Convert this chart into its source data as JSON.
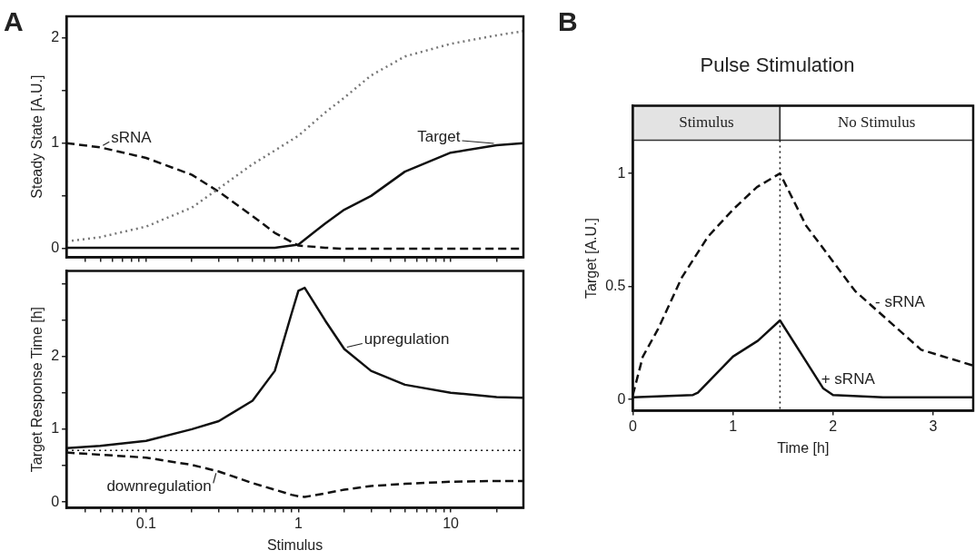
{
  "chart_data": [
    {
      "type": "line",
      "annotations": [
        "A",
        {
          "text": "sRNA",
          "x": 0.05,
          "y": 0.96
        },
        {
          "text": "Target",
          "x": 20,
          "y": 0.98
        }
      ],
      "ylabel": "Steady State [A.U.]",
      "log": "x",
      "xlim": [
        0.03,
        30
      ],
      "ylim": [
        -0.08,
        2.2
      ],
      "xticks": [
        {
          "value": 0.04,
          "label": null
        },
        {
          "value": 0.05,
          "label": null
        },
        {
          "value": 0.06,
          "label": null
        },
        {
          "value": 0.07,
          "label": null
        },
        {
          "value": 0.08,
          "label": null
        },
        {
          "value": 0.09,
          "label": null
        },
        {
          "value": 0.1,
          "label": null
        },
        {
          "value": 0.2,
          "label": null
        },
        {
          "value": 0.3,
          "label": null
        },
        {
          "value": 0.4,
          "label": null
        },
        {
          "value": 0.5,
          "label": null
        },
        {
          "value": 0.6,
          "label": null
        },
        {
          "value": 0.7,
          "label": null
        },
        {
          "value": 0.8,
          "label": null
        },
        {
          "value": 0.9,
          "label": null
        },
        {
          "value": 1,
          "label": null
        },
        {
          "value": 2,
          "label": null
        },
        {
          "value": 3,
          "label": null
        },
        {
          "value": 4,
          "label": null
        },
        {
          "value": 5,
          "label": null
        },
        {
          "value": 6,
          "label": null
        },
        {
          "value": 7,
          "label": null
        },
        {
          "value": 8,
          "label": null
        },
        {
          "value": 9,
          "label": null
        },
        {
          "value": 10,
          "label": null
        },
        {
          "value": 20,
          "label": null
        }
      ],
      "yticks": [
        0,
        {
          "value": 0.5,
          "label": null
        },
        1,
        {
          "value": 1.5,
          "label": null
        },
        2
      ],
      "tick_labels": "y",
      "grid": false,
      "legend": false,
      "x": [
        0.03,
        0.05,
        0.1,
        0.2,
        0.3,
        0.5,
        0.7,
        1,
        1.5,
        2,
        3,
        5,
        10,
        20,
        30
      ],
      "series": [
        {
          "color": "#777777",
          "line_style": "dotted",
          "values": [
            0.07,
            0.11,
            0.21,
            0.39,
            0.57,
            0.8,
            0.93,
            1.07,
            1.29,
            1.43,
            1.64,
            1.82,
            1.94,
            2.02,
            2.06
          ]
        },
        {
          "color": "#111111",
          "line_style": "dashed",
          "values": [
            1.0,
            0.96,
            0.86,
            0.7,
            0.54,
            0.31,
            0.15,
            0.03,
            0.01,
            0.0,
            0.0,
            0.0,
            0.0,
            0.0,
            0.0
          ]
        },
        {
          "color": "#111111",
          "line_style": "solid",
          "values": [
            0.01,
            0.01,
            0.01,
            0.01,
            0.01,
            0.01,
            0.01,
            0.04,
            0.24,
            0.37,
            0.5,
            0.73,
            0.91,
            0.98,
            1.0
          ]
        }
      ]
    },
    {
      "type": "line",
      "annotations": [
        {
          "text": "upregulation",
          "x": 2,
          "y": 2.1
        },
        {
          "text": "downregulation",
          "x": 0.3,
          "y": 0.42
        }
      ],
      "xlabel": "Stimulus",
      "ylabel": "Target Response Time [h]",
      "log": "x",
      "xlim": [
        0.03,
        30
      ],
      "ylim": [
        -0.08,
        3.17
      ],
      "xticks": [
        {
          "value": 0.04,
          "label": null
        },
        {
          "value": 0.05,
          "label": null
        },
        {
          "value": 0.06,
          "label": null
        },
        {
          "value": 0.07,
          "label": null
        },
        {
          "value": 0.08,
          "label": null
        },
        {
          "value": 0.09,
          "label": null
        },
        0.1,
        {
          "value": 0.2,
          "label": null
        },
        {
          "value": 0.3,
          "label": null
        },
        {
          "value": 0.4,
          "label": null
        },
        {
          "value": 0.5,
          "label": null
        },
        {
          "value": 0.6,
          "label": null
        },
        {
          "value": 0.7,
          "label": null
        },
        {
          "value": 0.8,
          "label": null
        },
        {
          "value": 0.9,
          "label": null
        },
        1,
        {
          "value": 2,
          "label": null
        },
        {
          "value": 3,
          "label": null
        },
        {
          "value": 4,
          "label": null
        },
        {
          "value": 5,
          "label": null
        },
        {
          "value": 6,
          "label": null
        },
        {
          "value": 7,
          "label": null
        },
        {
          "value": 8,
          "label": null
        },
        {
          "value": 9,
          "label": null
        },
        10,
        {
          "value": 20,
          "label": null
        }
      ],
      "yticks": [
        0,
        {
          "value": 0.5,
          "label": null
        },
        1,
        {
          "value": 1.5,
          "label": null
        },
        2,
        {
          "value": 2.5,
          "label": null
        },
        {
          "value": 3,
          "label": null
        }
      ],
      "grid": false,
      "legend": false,
      "ref_lines": [
        {
          "axis": "y",
          "value": 0.71,
          "line_style": "dotted",
          "color": "#111111"
        }
      ],
      "x": [
        0.03,
        0.05,
        0.1,
        0.2,
        0.3,
        0.5,
        0.7,
        0.9,
        1,
        1.1,
        1.5,
        2,
        3,
        5,
        10,
        20,
        30
      ],
      "series": [
        {
          "color": "#111111",
          "line_style": "solid",
          "values": [
            0.74,
            0.77,
            0.84,
            1.0,
            1.11,
            1.39,
            1.8,
            2.58,
            2.9,
            2.94,
            2.49,
            2.1,
            1.8,
            1.61,
            1.5,
            1.44,
            1.43
          ]
        },
        {
          "color": "#111111",
          "line_style": "dashed",
          "values": [
            0.68,
            0.65,
            0.61,
            0.51,
            0.42,
            0.26,
            0.17,
            0.1,
            0.08,
            0.07,
            0.12,
            0.17,
            0.22,
            0.25,
            0.28,
            0.29,
            0.29
          ]
        }
      ]
    },
    {
      "type": "line",
      "title": "Pulse Stimulation",
      "annotations": [
        "B",
        {
          "text": "- sRNA",
          "x": 2.22,
          "y": 0.48
        },
        {
          "text": "+ sRNA",
          "x": 1.7,
          "y": 0.19
        }
      ],
      "xlabel": "Time [h]",
      "ylabel": "Target [A.U.]",
      "xlim": [
        0,
        3.4
      ],
      "ylim": [
        -0.05,
        1.3
      ],
      "xticks": [
        0,
        1,
        2,
        3
      ],
      "yticks": [
        0,
        0.5,
        1
      ],
      "grid": false,
      "legend": false,
      "ref_lines": [
        {
          "axis": "x",
          "value": 1.47,
          "line_style": "dotted",
          "color": "#111111"
        }
      ],
      "bands": [
        {
          "axis": "x",
          "from": 0,
          "to": 1.47,
          "label": "Stimulus",
          "color": "#e3e3e3"
        },
        {
          "axis": "x",
          "from": 1.47,
          "to": 3.4,
          "label": "No Stimulus",
          "color": "#ffffff"
        }
      ],
      "series": [
        {
          "color": "#111111",
          "line_style": "dashed",
          "x": [
            0,
            0.1,
            0.25,
            0.49,
            0.75,
            1.0,
            1.24,
            1.47,
            1.73,
            2.0,
            2.22,
            2.55,
            2.88,
            3.4
          ],
          "values": [
            0.02,
            0.19,
            0.31,
            0.54,
            0.72,
            0.84,
            0.94,
            1.0,
            0.77,
            0.61,
            0.48,
            0.35,
            0.22,
            0.15
          ]
        },
        {
          "color": "#111111",
          "line_style": "solid",
          "x": [
            0,
            0.6,
            0.65,
            1.0,
            1.25,
            1.47,
            1.7,
            1.9,
            2.0,
            2.5,
            3.4
          ],
          "values": [
            0.01,
            0.02,
            0.03,
            0.19,
            0.26,
            0.35,
            0.19,
            0.05,
            0.02,
            0.01,
            0.01
          ]
        }
      ]
    }
  ]
}
